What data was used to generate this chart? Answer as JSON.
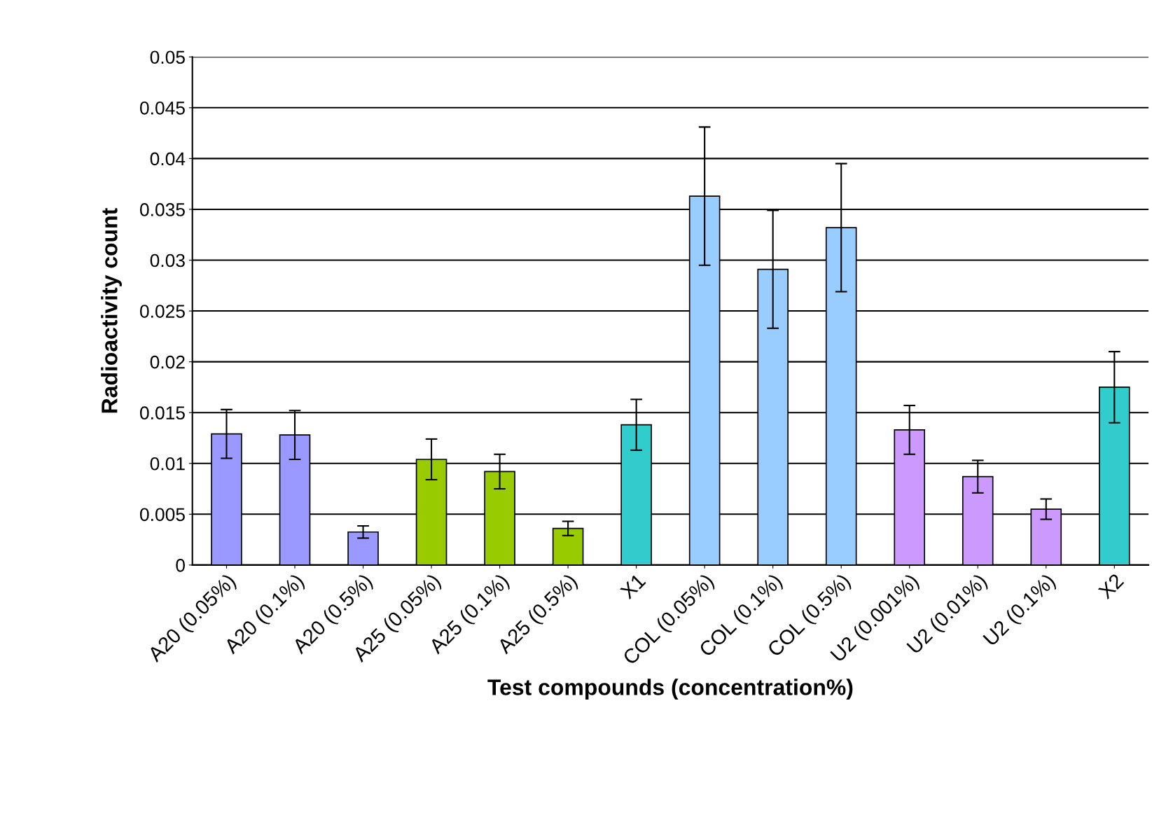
{
  "chart_data": {
    "type": "bar",
    "xlabel": "Test compounds (concentration%)",
    "ylabel": "Radioactivity count",
    "categories": [
      "A20 (0.05%)",
      "A20 (0.1%)",
      "A20 (0.5%)",
      "A25 (0.05%)",
      "A25 (0.1%)",
      "A25 (0.5%)",
      "X1",
      "COL (0.05%)",
      "COL (0.1%)",
      "COL (0.5%)",
      "U2 (0.001%)",
      "U2 (0.01%)",
      "U2 (0.1%)",
      "X2"
    ],
    "values": [
      0.0129,
      0.0128,
      0.00325,
      0.0104,
      0.0092,
      0.0036,
      0.0138,
      0.0363,
      0.0291,
      0.0332,
      0.0133,
      0.0087,
      0.0055,
      0.0175
    ],
    "errors": [
      0.0024,
      0.0024,
      0.0006,
      0.002,
      0.0017,
      0.0007,
      0.0025,
      0.0068,
      0.0058,
      0.0063,
      0.0024,
      0.0016,
      0.001,
      0.0035
    ],
    "colors": [
      "#9999ff",
      "#9999ff",
      "#9999ff",
      "#99cc00",
      "#99cc00",
      "#99cc00",
      "#33cccc",
      "#99ccff",
      "#99ccff",
      "#99ccff",
      "#cc99ff",
      "#cc99ff",
      "#cc99ff",
      "#33cccc"
    ],
    "ylim": [
      0,
      0.05
    ],
    "yticks": [
      0,
      0.005,
      0.01,
      0.015,
      0.02,
      0.025,
      0.03,
      0.035,
      0.04,
      0.045,
      0.05
    ],
    "grid": "y"
  }
}
